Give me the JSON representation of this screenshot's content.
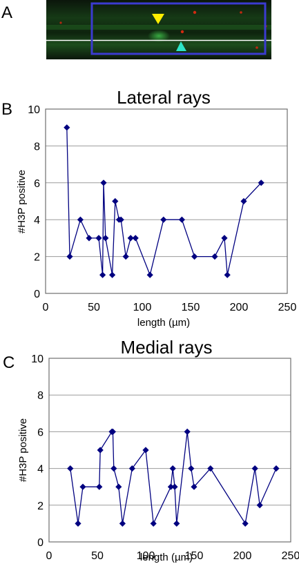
{
  "figure": {
    "panels": [
      {
        "letter": "A",
        "kind": "micrograph"
      },
      {
        "letter": "B",
        "kind": "chart"
      },
      {
        "letter": "C",
        "kind": "chart"
      }
    ]
  },
  "colors": {
    "series": "#000080",
    "grid": "#9a9a9a",
    "frame": "#6e6e6e",
    "image_background": "#0c170c",
    "image_box": "#3b3bd0",
    "arrow_yellow": "#ffee00",
    "arrow_cyan": "#2ee6c8",
    "red_spots": "#d22a10",
    "green_signal": "#1f8a2a"
  },
  "chart_data": [
    {
      "type": "line",
      "panel": "B",
      "title": "Lateral rays",
      "xlabel": "length (µm)",
      "ylabel": "#H3P positive",
      "xlim": [
        0,
        250
      ],
      "ylim": [
        0,
        10
      ],
      "x_ticks": [
        0,
        50,
        100,
        150,
        200,
        250
      ],
      "y_ticks": [
        0,
        2,
        4,
        6,
        8,
        10
      ],
      "grid": "horizontal",
      "marker": "diamond",
      "series": [
        {
          "x": [
            22,
            25,
            36,
            45,
            55,
            59,
            60,
            62,
            69,
            72,
            76,
            78,
            83,
            88,
            93,
            108,
            122,
            141,
            154,
            175,
            185,
            188,
            205,
            223
          ],
          "y": [
            9,
            2,
            4,
            3,
            3,
            1,
            6,
            3,
            1,
            5,
            4,
            4,
            2,
            3,
            3,
            1,
            4,
            4,
            2,
            2,
            3,
            1,
            5,
            6
          ]
        }
      ]
    },
    {
      "type": "line",
      "panel": "C",
      "title": "Medial rays",
      "xlabel": "length (µm)",
      "ylabel": "#H3P positive",
      "xlim": [
        0,
        250
      ],
      "ylim": [
        0,
        10
      ],
      "x_ticks": [
        0,
        50,
        100,
        150,
        200,
        250
      ],
      "y_ticks": [
        0,
        2,
        4,
        6,
        8,
        10
      ],
      "grid": "horizontal",
      "marker": "diamond",
      "series": [
        {
          "x": [
            22,
            30,
            35,
            52,
            53,
            65,
            66,
            67,
            72,
            76,
            86,
            100,
            108,
            126,
            128,
            130,
            132,
            143,
            147,
            150,
            167,
            203,
            213,
            218,
            235
          ],
          "y": [
            4,
            1,
            3,
            3,
            5,
            6,
            6,
            4,
            3,
            1,
            4,
            5,
            1,
            3,
            4,
            3,
            1,
            6,
            4,
            3,
            4,
            1,
            4,
            2,
            4
          ]
        }
      ]
    }
  ]
}
